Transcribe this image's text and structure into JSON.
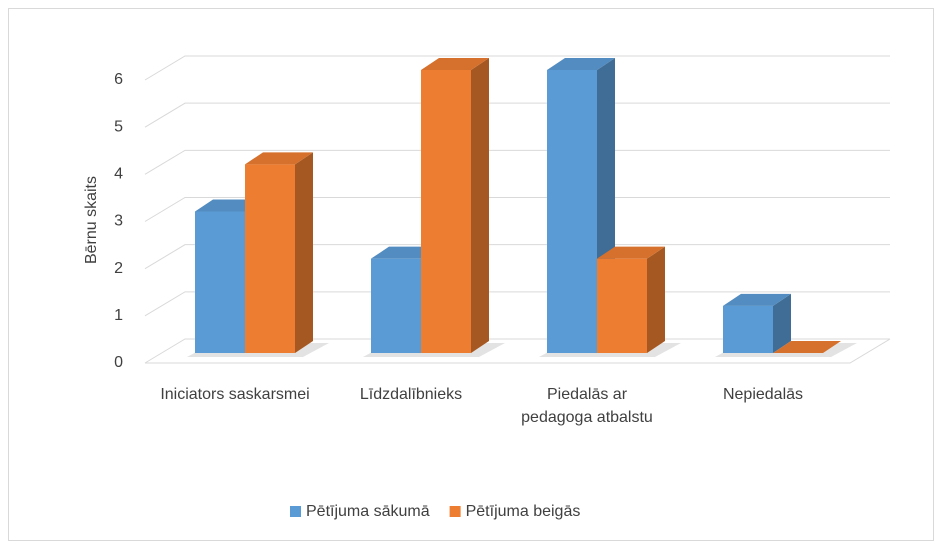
{
  "chart_data": {
    "type": "bar3d",
    "y_label": "Bērnu skaits",
    "categories": [
      "Iniciators saskarsmei",
      "Līdzdalībnieks",
      "Piedalās ar pedagoga atbalstu",
      "Nepiedalās"
    ],
    "series": [
      {
        "name": "Pētījuma sākumā",
        "color": "#5b9bd5",
        "values": [
          3,
          2,
          6,
          1
        ]
      },
      {
        "name": "Pētījuma beigās",
        "color": "#ed7d31",
        "values": [
          4,
          6,
          2,
          0
        ]
      }
    ],
    "ylim": [
      0,
      6
    ],
    "yticks": [
      0,
      1,
      2,
      3,
      4,
      5,
      6
    ],
    "grid": true,
    "legend": "bottom"
  }
}
